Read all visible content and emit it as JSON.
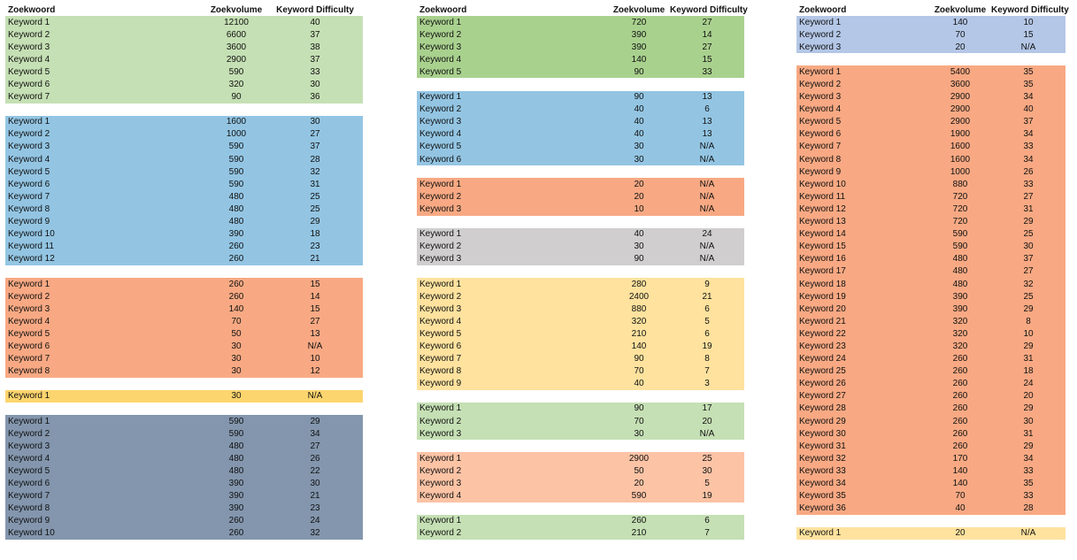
{
  "headers": {
    "keyword": "Zoekwoord",
    "volume": "Zoekvolume",
    "difficulty": "Keyword Difficulty"
  },
  "columns": [
    {
      "groups": [
        {
          "color": "#c5e0b4",
          "rows": [
            [
              "Keyword 1",
              "12100",
              "40"
            ],
            [
              "Keyword 2",
              "6600",
              "37"
            ],
            [
              "Keyword 3",
              "3600",
              "38"
            ],
            [
              "Keyword 4",
              "2900",
              "37"
            ],
            [
              "Keyword 5",
              "590",
              "33"
            ],
            [
              "Keyword 6",
              "320",
              "30"
            ],
            [
              "Keyword 7",
              "90",
              "36"
            ]
          ]
        },
        {
          "color": "#93c5e3",
          "rows": [
            [
              "Keyword 1",
              "1600",
              "30"
            ],
            [
              "Keyword 2",
              "1000",
              "27"
            ],
            [
              "Keyword 3",
              "590",
              "37"
            ],
            [
              "Keyword 4",
              "590",
              "28"
            ],
            [
              "Keyword 5",
              "590",
              "32"
            ],
            [
              "Keyword 6",
              "590",
              "31"
            ],
            [
              "Keyword 7",
              "480",
              "25"
            ],
            [
              "Keyword 8",
              "480",
              "25"
            ],
            [
              "Keyword 9",
              "480",
              "29"
            ],
            [
              "Keyword 10",
              "390",
              "18"
            ],
            [
              "Keyword 11",
              "260",
              "23"
            ],
            [
              "Keyword 12",
              "260",
              "21"
            ]
          ]
        },
        {
          "color": "#f8a983",
          "rows": [
            [
              "Keyword 1",
              "260",
              "15"
            ],
            [
              "Keyword 2",
              "260",
              "14"
            ],
            [
              "Keyword 3",
              "140",
              "15"
            ],
            [
              "Keyword 4",
              "70",
              "27"
            ],
            [
              "Keyword 5",
              "50",
              "13"
            ],
            [
              "Keyword 6",
              "30",
              "N/A"
            ],
            [
              "Keyword 7",
              "30",
              "10"
            ],
            [
              "Keyword 8",
              "30",
              "12"
            ]
          ]
        },
        {
          "color": "#fdd56e",
          "rows": [
            [
              "Keyword 1",
              "30",
              "N/A"
            ]
          ]
        },
        {
          "color": "#8396ad",
          "rows": [
            [
              "Keyword 1",
              "590",
              "29"
            ],
            [
              "Keyword 2",
              "590",
              "34"
            ],
            [
              "Keyword 3",
              "480",
              "27"
            ],
            [
              "Keyword 4",
              "480",
              "26"
            ],
            [
              "Keyword 5",
              "480",
              "22"
            ],
            [
              "Keyword 6",
              "390",
              "30"
            ],
            [
              "Keyword 7",
              "390",
              "21"
            ],
            [
              "Keyword 8",
              "390",
              "23"
            ],
            [
              "Keyword 9",
              "260",
              "24"
            ],
            [
              "Keyword 10",
              "260",
              "32"
            ]
          ]
        }
      ]
    },
    {
      "groups": [
        {
          "color": "#a9d18e",
          "rows": [
            [
              "Keyword 1",
              "720",
              "27"
            ],
            [
              "Keyword 2",
              "390",
              "14"
            ],
            [
              "Keyword 3",
              "390",
              "27"
            ],
            [
              "Keyword 4",
              "140",
              "15"
            ],
            [
              "Keyword 5",
              "90",
              "33"
            ]
          ]
        },
        {
          "color": "#93c5e3",
          "rows": [
            [
              "Keyword 1",
              "90",
              "13"
            ],
            [
              "Keyword 2",
              "40",
              "6"
            ],
            [
              "Keyword 3",
              "40",
              "13"
            ],
            [
              "Keyword 4",
              "40",
              "13"
            ],
            [
              "Keyword 5",
              "30",
              "N/A"
            ],
            [
              "Keyword 6",
              "30",
              "N/A"
            ]
          ]
        },
        {
          "color": "#f8a983",
          "rows": [
            [
              "Keyword 1",
              "20",
              "N/A"
            ],
            [
              "Keyword 2",
              "20",
              "N/A"
            ],
            [
              "Keyword 3",
              "10",
              "N/A"
            ]
          ]
        },
        {
          "color": "#d0cece",
          "rows": [
            [
              "Keyword 1",
              "40",
              "24"
            ],
            [
              "Keyword 2",
              "30",
              "N/A"
            ],
            [
              "Keyword 3",
              "90",
              "N/A"
            ]
          ]
        },
        {
          "color": "#fee29e",
          "rows": [
            [
              "Keyword 1",
              "280",
              "9"
            ],
            [
              "Keyword 2",
              "2400",
              "21"
            ],
            [
              "Keyword 3",
              "880",
              "6"
            ],
            [
              "Keyword 4",
              "320",
              "5"
            ],
            [
              "Keyword 5",
              "210",
              "6"
            ],
            [
              "Keyword 6",
              "140",
              "19"
            ],
            [
              "Keyword 7",
              "90",
              "8"
            ],
            [
              "Keyword 8",
              "70",
              "7"
            ],
            [
              "Keyword 9",
              "40",
              "3"
            ]
          ]
        },
        {
          "color": "#c5e0b4",
          "rows": [
            [
              "Keyword 1",
              "90",
              "17"
            ],
            [
              "Keyword 2",
              "70",
              "20"
            ],
            [
              "Keyword 3",
              "30",
              "N/A"
            ]
          ]
        },
        {
          "color": "#fcc3a5",
          "rows": [
            [
              "Keyword 1",
              "2900",
              "25"
            ],
            [
              "Keyword 2",
              "50",
              "30"
            ],
            [
              "Keyword 3",
              "20",
              "5"
            ],
            [
              "Keyword 4",
              "590",
              "19"
            ]
          ]
        },
        {
          "color": "#c5e0b4",
          "rows": [
            [
              "Keyword 1",
              "260",
              "6"
            ],
            [
              "Keyword 2",
              "210",
              "7"
            ]
          ]
        }
      ]
    },
    {
      "groups": [
        {
          "color": "#b4c7e7",
          "rows": [
            [
              "Keyword 1",
              "140",
              "10"
            ],
            [
              "Keyword 2",
              "70",
              "15"
            ],
            [
              "Keyword 3",
              "20",
              "N/A"
            ]
          ]
        },
        {
          "color": "#f8a983",
          "rows": [
            [
              "Keyword 1",
              "5400",
              "35"
            ],
            [
              "Keyword 2",
              "3600",
              "35"
            ],
            [
              "Keyword 3",
              "2900",
              "34"
            ],
            [
              "Keyword 4",
              "2900",
              "40"
            ],
            [
              "Keyword 5",
              "2900",
              "37"
            ],
            [
              "Keyword 6",
              "1900",
              "34"
            ],
            [
              "Keyword 7",
              "1600",
              "33"
            ],
            [
              "Keyword 8",
              "1600",
              "34"
            ],
            [
              "Keyword 9",
              "1000",
              "26"
            ],
            [
              "Keyword 10",
              "880",
              "33"
            ],
            [
              "Keyword 11",
              "720",
              "27"
            ],
            [
              "Keyword 12",
              "720",
              "31"
            ],
            [
              "Keyword 13",
              "720",
              "29"
            ],
            [
              "Keyword 14",
              "590",
              "25"
            ],
            [
              "Keyword 15",
              "590",
              "30"
            ],
            [
              "Keyword 16",
              "480",
              "37"
            ],
            [
              "Keyword 17",
              "480",
              "27"
            ],
            [
              "Keyword 18",
              "480",
              "32"
            ],
            [
              "Keyword 19",
              "390",
              "25"
            ],
            [
              "Keyword 20",
              "390",
              "29"
            ],
            [
              "Keyword 21",
              "320",
              "8"
            ],
            [
              "Keyword 22",
              "320",
              "10"
            ],
            [
              "Keyword 23",
              "320",
              "29"
            ],
            [
              "Keyword 24",
              "260",
              "31"
            ],
            [
              "Keyword 25",
              "260",
              "18"
            ],
            [
              "Keyword 26",
              "260",
              "24"
            ],
            [
              "Keyword 27",
              "260",
              "20"
            ],
            [
              "Keyword 28",
              "260",
              "29"
            ],
            [
              "Keyword 29",
              "260",
              "30"
            ],
            [
              "Keyword 30",
              "260",
              "31"
            ],
            [
              "Keyword 31",
              "260",
              "29"
            ],
            [
              "Keyword 32",
              "170",
              "34"
            ],
            [
              "Keyword 33",
              "140",
              "33"
            ],
            [
              "Keyword 34",
              "140",
              "35"
            ],
            [
              "Keyword 35",
              "70",
              "33"
            ],
            [
              "Keyword 36",
              "40",
              "28"
            ]
          ]
        },
        {
          "color": "#fee29e",
          "rows": [
            [
              "Keyword 1",
              "20",
              "N/A"
            ]
          ]
        }
      ]
    }
  ]
}
